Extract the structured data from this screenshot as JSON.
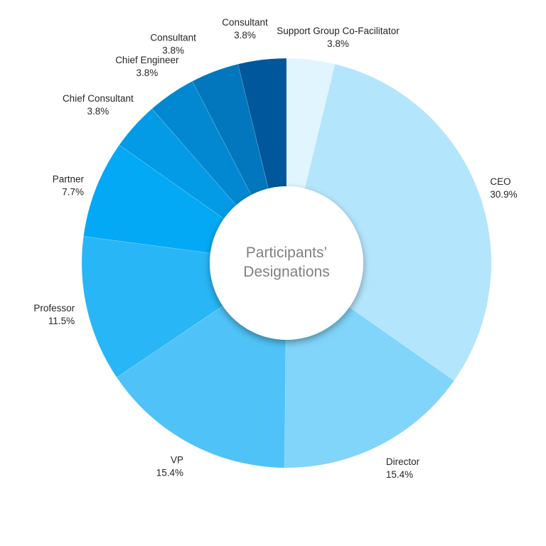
{
  "chart_data": {
    "type": "pie",
    "variant": "donut",
    "title": "Participants’ Designations",
    "title_lines": [
      "Participants’",
      "Designations"
    ],
    "categories": [
      "Support Group Co-Facilitator",
      "CEO",
      "Director",
      "VP",
      "Professor",
      "Partner",
      "Chief Consultant",
      "Chief Engineer",
      "Consultant",
      "Consultant"
    ],
    "values": [
      3.8,
      30.9,
      15.4,
      15.4,
      11.5,
      7.7,
      3.8,
      3.8,
      3.8,
      3.8
    ],
    "value_labels": [
      "3.8%",
      "30.9%",
      "15.4%",
      "15.4%",
      "11.5%",
      "7.7%",
      "3.8%",
      "3.8%",
      "3.8%",
      "3.8%"
    ],
    "colors": [
      "#e1f5fe",
      "#b3e5fc",
      "#81d4fa",
      "#4fc3f7",
      "#29b6f6",
      "#03a9f4",
      "#039be5",
      "#0288d1",
      "#0277bd",
      "#01579b"
    ],
    "start_angle": "12 o'clock",
    "direction": "clockwise",
    "legend": "none"
  }
}
